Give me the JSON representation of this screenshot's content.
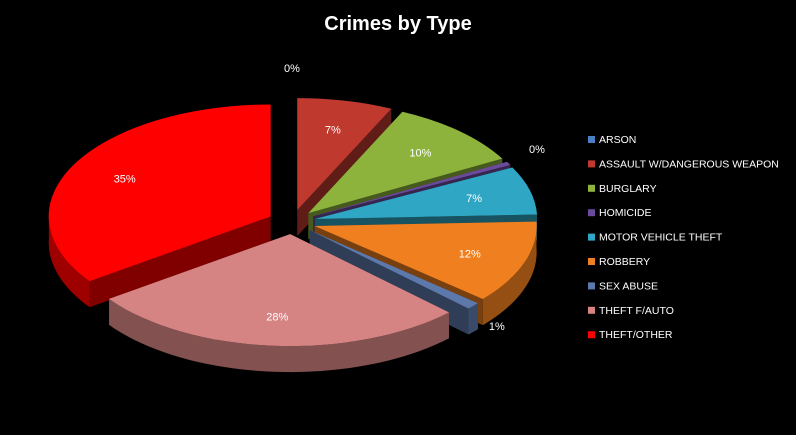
{
  "chart_data": {
    "type": "pie",
    "title": "Crimes by Type",
    "legend_position": "right",
    "exploded": true,
    "three_d": true,
    "slices": [
      {
        "label": "ARSON",
        "value": 0,
        "display": "0%",
        "color": "#4a7fc1"
      },
      {
        "label": "ASSAULT W/DANGEROUS WEAPON",
        "value": 7,
        "display": "7%",
        "color": "#c0392f"
      },
      {
        "label": "BURGLARY",
        "value": 10,
        "display": "10%",
        "color": "#8db33c"
      },
      {
        "label": "HOMICIDE",
        "value": 0.5,
        "display": "0%",
        "color": "#6b4a9b"
      },
      {
        "label": "MOTOR VEHICLE THEFT",
        "value": 7,
        "display": "7%",
        "color": "#2fa6c4"
      },
      {
        "label": "ROBBERY",
        "value": 12,
        "display": "12%",
        "color": "#f0801f"
      },
      {
        "label": "SEX ABUSE",
        "value": 1,
        "display": "1%",
        "color": "#5d79ab"
      },
      {
        "label": "THEFT F/AUTO",
        "value": 28,
        "display": "28%",
        "color": "#d58383"
      },
      {
        "label": "THEFT/OTHER",
        "value": 35,
        "display": "35%",
        "color": "#ff0000"
      }
    ]
  }
}
